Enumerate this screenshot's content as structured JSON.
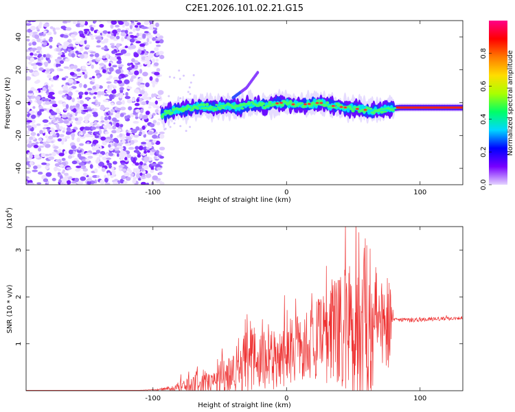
{
  "chart_data": [
    {
      "type": "heatmap",
      "title": "C2E1.2026.101.02.21.G15",
      "xlabel": "Height of straight line (km)",
      "ylabel": "Frequency (Hz)",
      "xlim": [
        -195,
        132
      ],
      "ylim": [
        -50,
        50
      ],
      "xticks": [
        -100,
        0,
        100
      ],
      "yticks": [
        -40,
        -20,
        0,
        20,
        40
      ],
      "xtick_labels": [
        "-100",
        "0",
        "100"
      ],
      "ytick_labels": [
        "-40",
        "-20",
        "0",
        "20",
        "40"
      ],
      "noise_region_x": [
        -195,
        -93
      ],
      "signal_track": {
        "x": [
          -93,
          -85,
          -75,
          -65,
          -55,
          -45,
          -35,
          -25,
          -15,
          -5,
          5,
          15,
          25,
          35,
          45,
          55,
          65,
          75,
          85,
          95,
          105,
          115,
          125,
          132
        ],
        "freq": [
          -7,
          -5,
          -4,
          -2,
          -3,
          -2,
          -3,
          -1,
          -2,
          0,
          -1,
          -1,
          0,
          -2,
          -3,
          -4,
          -5,
          -4,
          -3,
          -3,
          -3,
          -3,
          -3,
          -3
        ]
      },
      "secondary_branch": {
        "x": [
          -40,
          -30,
          -21
        ],
        "freq": [
          3,
          9,
          19
        ]
      },
      "colorbar": {
        "label": "Normalized spectral amplitude",
        "range": [
          0,
          1
        ],
        "ticks": [
          "0.0",
          "0.2",
          "0.4",
          "0.6",
          "0.8"
        ],
        "colors": [
          "#e4d4ff",
          "#7700ff",
          "#0000ff",
          "#00d8ff",
          "#00ff66",
          "#aaff00",
          "#ffdd00",
          "#ff7a00",
          "#ff0000",
          "#ff0088"
        ]
      }
    },
    {
      "type": "line",
      "xlabel": "Height of straight line (km)",
      "ylabel": "SNR (10 * v/v)",
      "ylabel_multiplier": "(x10",
      "ylabel_multiplier_exp": "4",
      "ylabel_multiplier_close": ")",
      "xlim": [
        -195,
        132
      ],
      "ylim": [
        0,
        3.5
      ],
      "xticks": [
        -100,
        0,
        100
      ],
      "yticks": [
        1,
        2,
        3
      ],
      "xtick_labels": [
        "-100",
        "0",
        "100"
      ],
      "ytick_labels": [
        "1",
        "2",
        "3"
      ],
      "color": "#ee3333",
      "envelope": {
        "x": [
          -195,
          -110,
          -95,
          -85,
          -75,
          -65,
          -55,
          -45,
          -35,
          -25,
          -15,
          -5,
          5,
          15,
          25,
          35,
          45,
          55,
          62,
          70,
          78,
          80,
          95,
          110,
          132
        ],
        "baseline": [
          0.01,
          0.01,
          0.02,
          0.04,
          0.08,
          0.1,
          0.15,
          0.3,
          0.45,
          0.55,
          0.6,
          0.7,
          0.8,
          0.9,
          1.0,
          1.1,
          1.2,
          1.3,
          1.3,
          1.35,
          1.45,
          1.52,
          1.5,
          1.52,
          1.55
        ],
        "amplitude": [
          0.0,
          0.0,
          0.02,
          0.06,
          0.2,
          0.35,
          0.25,
          0.45,
          0.6,
          0.8,
          0.75,
          0.7,
          0.75,
          0.8,
          0.9,
          1.2,
          1.5,
          2.0,
          1.6,
          1.2,
          1.0,
          0.05,
          0.04,
          0.04,
          0.04
        ]
      }
    }
  ]
}
